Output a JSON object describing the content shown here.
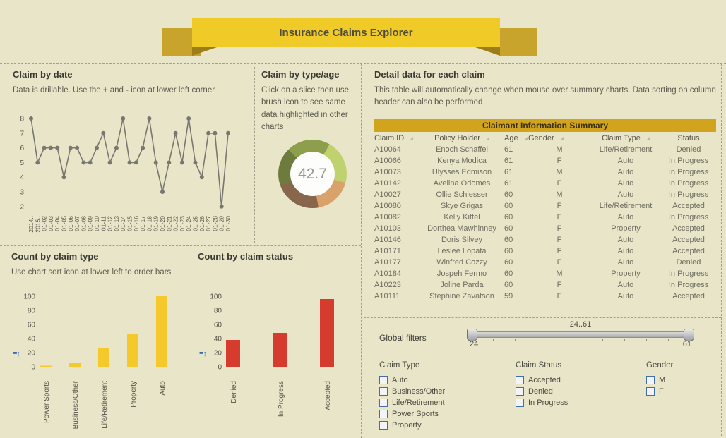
{
  "banner": {
    "title": "Insurance Claims Explorer"
  },
  "panels": {
    "claim_by_date": {
      "title": "Claim by date",
      "subtitle": "Data is drillable. Use the + and - icon at lower left corner"
    },
    "claim_by_type_age": {
      "title": "Claim by type/age",
      "subtitle": "Click on a slice then use brush icon to see same data highlighted in other charts",
      "center_value": "42.7"
    },
    "detail": {
      "title": "Detail data for each claim",
      "subtitle": "This table will automatically change when mouse over summary charts. Data sorting on column header can also be performed"
    },
    "count_by_type": {
      "title": "Count by claim type",
      "subtitle": "Use chart sort icon at lower left to order bars",
      "sort_icon_glyph": "≡↑"
    },
    "count_by_status": {
      "title": "Count by claim status",
      "sort_icon_glyph": "≡↑"
    }
  },
  "table": {
    "band_title": "Claimant Information Summary",
    "columns": [
      "Claim ID",
      "Policy Holder",
      "Age",
      "Gender",
      "Claim Type",
      "Status"
    ],
    "rows": [
      [
        "A10064",
        "Enoch Schaffel",
        "61",
        "M",
        "Life/Retirement",
        "Denied"
      ],
      [
        "A10066",
        "Kenya Modica",
        "61",
        "F",
        "Auto",
        "In Progress"
      ],
      [
        "A10073",
        "Ulysses Edmison",
        "61",
        "M",
        "Auto",
        "In Progress"
      ],
      [
        "A10142",
        "Avelina Odomes",
        "61",
        "F",
        "Auto",
        "In Progress"
      ],
      [
        "A10027",
        "Ollie Schiesser",
        "60",
        "M",
        "Auto",
        "In Progress"
      ],
      [
        "A10080",
        "Skye Grigas",
        "60",
        "F",
        "Life/Retirement",
        "Accepted"
      ],
      [
        "A10082",
        "Kelly Kittel",
        "60",
        "F",
        "Auto",
        "In Progress"
      ],
      [
        "A10103",
        "Dorthea Mawhinney",
        "60",
        "F",
        "Property",
        "Accepted"
      ],
      [
        "A10146",
        "Doris Silvey",
        "60",
        "F",
        "Auto",
        "Accepted"
      ],
      [
        "A10171",
        "Leslee Lopata",
        "60",
        "F",
        "Auto",
        "Accepted"
      ],
      [
        "A10177",
        "Winfred Cozzy",
        "60",
        "F",
        "Auto",
        "Denied"
      ],
      [
        "A10184",
        "Jospeh Fermo",
        "60",
        "M",
        "Property",
        "In Progress"
      ],
      [
        "A10223",
        "Joline Parda",
        "60",
        "F",
        "Auto",
        "In Progress"
      ],
      [
        "A10111",
        "Stephine Zavatson",
        "59",
        "F",
        "Auto",
        "Accepted"
      ]
    ]
  },
  "global_filters": {
    "label": "Global filters",
    "slider": {
      "range_label": "24..61",
      "min_label": "24",
      "max_label": "61"
    },
    "groups": [
      {
        "label": "Claim Type",
        "options": [
          "Auto",
          "Business/Other",
          "Life/Retirement",
          "Power Sports",
          "Property"
        ]
      },
      {
        "label": "Claim Status",
        "options": [
          "Accepted",
          "Denied",
          "In Progress"
        ]
      },
      {
        "label": "Gender",
        "options": [
          "M",
          "F"
        ]
      }
    ]
  },
  "chart_data": [
    {
      "id": "claim_by_date",
      "type": "line",
      "title": "Claim by date",
      "x": [
        "2014..",
        "2015..",
        "01-02",
        "01-03",
        "01-04",
        "01-05",
        "01-06",
        "01-07",
        "01-08",
        "01-09",
        "01-10",
        "01-11",
        "01-12",
        "01-13",
        "01-14",
        "01-15",
        "01-16",
        "01-17",
        "01-18",
        "01-19",
        "01-20",
        "01-21",
        "01-22",
        "01-23",
        "01-24",
        "01-25",
        "01-26",
        "01-27",
        "01-28",
        "01-29",
        "01-30"
      ],
      "values": [
        8,
        5,
        6,
        6,
        6,
        4,
        6,
        6,
        5,
        5,
        6,
        7,
        5,
        6,
        8,
        5,
        5,
        6,
        8,
        5,
        3,
        5,
        7,
        5,
        8,
        5,
        4,
        7,
        7,
        2,
        7
      ],
      "yticks": [
        2,
        3,
        4,
        5,
        6,
        7,
        8
      ],
      "ylim": [
        2,
        8
      ],
      "color": "#787870",
      "marker": "circle",
      "x_labels_rotated": true,
      "grid": false
    },
    {
      "id": "claim_by_type_age",
      "type": "pie",
      "title": "Claim by type/age",
      "center_label": "42.7",
      "start_deg": -45,
      "segments": [
        {
          "color": "#8d9e4d",
          "sweep_deg": 75,
          "pct_estimate": 20.8
        },
        {
          "color": "#c0d26f",
          "sweep_deg": 75,
          "pct_estimate": 20.8
        },
        {
          "color": "#d9a26a",
          "sweep_deg": 65,
          "pct_estimate": 18.1
        },
        {
          "color": "#87664b",
          "sweep_deg": 80,
          "pct_estimate": 22.2
        },
        {
          "color": "#6d7b3c",
          "sweep_deg": 65,
          "pct_estimate": 18.1
        }
      ]
    },
    {
      "id": "count_by_claim_type",
      "type": "bar",
      "title": "Count by claim type",
      "categories": [
        "Power Sports",
        "Business/Other",
        "Life/Retirement",
        "Property",
        "Auto"
      ],
      "values": [
        1,
        5,
        26,
        47,
        100
      ],
      "yticks": [
        0,
        20,
        40,
        60,
        80,
        100
      ],
      "ylim": [
        0,
        100
      ],
      "color": "#f5c92c",
      "grid": false
    },
    {
      "id": "count_by_claim_status",
      "type": "bar",
      "title": "Count by claim status",
      "categories": [
        "Denied",
        "In Progress",
        "Accepted"
      ],
      "values": [
        38,
        48,
        96
      ],
      "yticks": [
        0,
        20,
        40,
        60,
        80,
        100
      ],
      "ylim": [
        0,
        100
      ],
      "color": "#d63c2e",
      "grid": false
    }
  ],
  "colors": {
    "background": "#e9e5c9",
    "ribbon": "#f0cb28",
    "ribbon_dark": "#c9a42c",
    "table_band": "#d2a41e",
    "bar_yellow": "#f5c92c",
    "bar_red": "#d63c2e",
    "line": "#787870",
    "checkbox_blue": "#3f6fae",
    "sort_icon_blue": "#1f5fa8"
  }
}
